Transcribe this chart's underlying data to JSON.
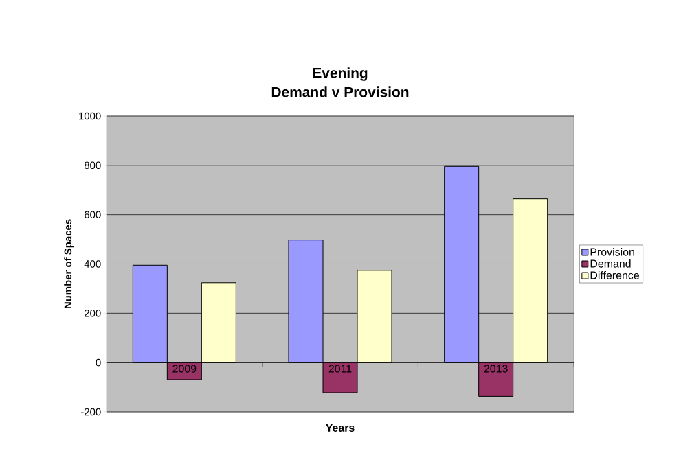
{
  "chart_data": {
    "type": "bar",
    "title": "Evening",
    "subtitle": "Demand v Provision",
    "xlabel": "Years",
    "ylabel": "Number of Spaces",
    "categories": [
      "2009",
      "2011",
      "2013"
    ],
    "series": [
      {
        "name": "Provision",
        "color": "#9999ff",
        "values": [
          395,
          497,
          796
        ]
      },
      {
        "name": "Demand",
        "color": "#993366",
        "values": [
          -69,
          -122,
          -137
        ]
      },
      {
        "name": "Difference",
        "color": "#ffffcc",
        "values": [
          324,
          374,
          664
        ]
      }
    ],
    "ylim": [
      -200,
      1000
    ],
    "yticks": [
      -200,
      0,
      200,
      400,
      600,
      800,
      1000
    ],
    "grid": "y",
    "legend": "right"
  }
}
